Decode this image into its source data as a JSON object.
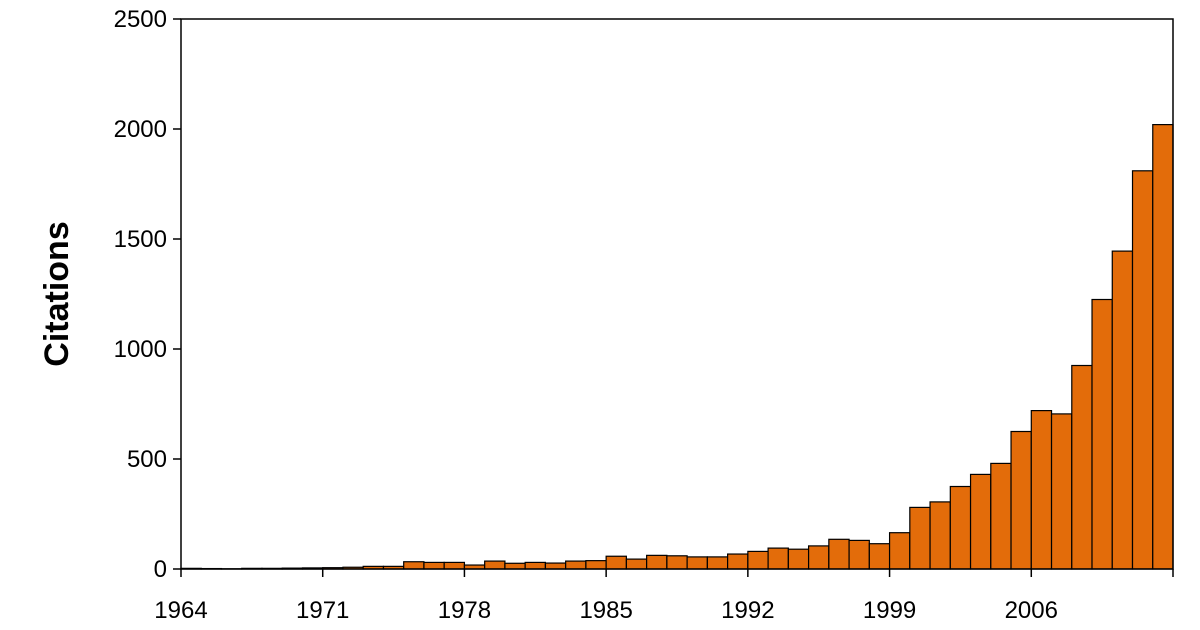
{
  "chart_data": {
    "type": "bar",
    "title": "",
    "xlabel": "",
    "ylabel": "Citations",
    "ylim": [
      0,
      2500
    ],
    "y_ticks": [
      0,
      500,
      1000,
      1500,
      2000,
      2500
    ],
    "y_tick_labels": [
      "0",
      "500",
      "1000",
      "1500",
      "2000",
      "2500"
    ],
    "x_ticks": [
      1964,
      1971,
      1978,
      1985,
      1992,
      1999,
      2006
    ],
    "x_tick_labels": [
      "1964",
      "1971",
      "1978",
      "1985",
      "1992",
      "1999",
      "2006"
    ],
    "grid": false,
    "legend": "none",
    "bar_color": "#E36C0A",
    "bar_edge_color": "#000000",
    "categories": [
      "1964",
      "1965",
      "1966",
      "1967",
      "1968",
      "1969",
      "1970",
      "1971",
      "1972",
      "1973",
      "1974",
      "1975",
      "1976",
      "1977",
      "1978",
      "1979",
      "1980",
      "1981",
      "1982",
      "1983",
      "1984",
      "1985",
      "1986",
      "1987",
      "1988",
      "1989",
      "1990",
      "1991",
      "1992",
      "1993",
      "1994",
      "1995",
      "1996",
      "1997",
      "1998",
      "1999",
      "2000",
      "2001",
      "2002",
      "2003",
      "2004",
      "2005",
      "2006",
      "2007",
      "2008",
      "2009",
      "2010",
      "2011",
      "2012"
    ],
    "values": [
      3,
      2,
      1,
      3,
      3,
      4,
      5,
      6,
      8,
      12,
      12,
      33,
      30,
      30,
      18,
      36,
      26,
      30,
      27,
      36,
      38,
      58,
      45,
      62,
      60,
      55,
      55,
      68,
      80,
      95,
      90,
      105,
      135,
      130,
      115,
      165,
      280,
      305,
      375,
      430,
      480,
      625,
      720,
      705,
      925,
      1225,
      1445,
      1810,
      2020
    ]
  }
}
